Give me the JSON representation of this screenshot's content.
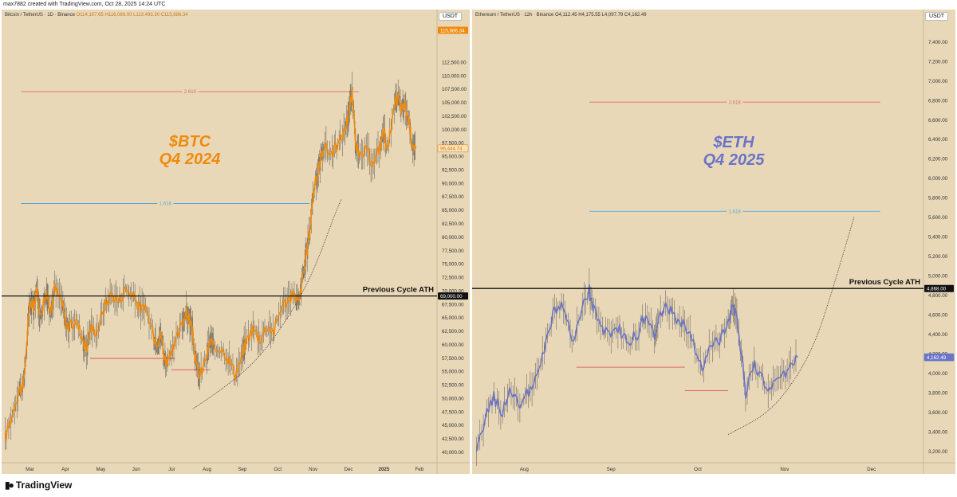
{
  "header": {
    "created_by": "max7882 created with TradingView.com, Oct 28, 2025 14:24 UTC"
  },
  "footer": {
    "brand": "TradingView"
  },
  "chart_data": [
    {
      "type": "line",
      "symbol_title": "Bitcoin / TetherUS · 1D · Binance",
      "ohlc": "O114,107.65 H116,086.00 L113,493.30 C115,886.34",
      "currency": "USDT",
      "annotation_title": "$BTC",
      "annotation_subtitle": "Q4 2024",
      "title_color": "#f08a0b",
      "series_color": "#f08a0b",
      "ylim": [
        38000,
        119000
      ],
      "y_ticks": [
        40000,
        42500,
        45000,
        47500,
        50000,
        52500,
        55000,
        57500,
        60000,
        62500,
        65000,
        67500,
        70000,
        72500,
        75000,
        77500,
        80000,
        82500,
        85000,
        87500,
        90000,
        92500,
        95000,
        97500,
        100000,
        102500,
        105000,
        107500,
        110000,
        112500
      ],
      "y_tick_labels": [
        "40,000.00",
        "42,500.00",
        "45,000.00",
        "47,500.00",
        "50,000.00",
        "52,500.00",
        "55,000.00",
        "57,500.00",
        "60,000.00",
        "62,500.00",
        "65,000.00",
        "67,500.00",
        "70,000.00",
        "72,500.00",
        "75,000.00",
        "77,500.00",
        "80,000.00",
        "82,500.00",
        "85,000.00",
        "87,500.00",
        "90,000.00",
        "92,500.00",
        "95,000.00",
        "97,500.00",
        "100,000.00",
        "102,500.00",
        "105,000.00",
        "107,500.00",
        "110,000.00",
        "112,500.00"
      ],
      "x_tick_labels": [
        "Mar",
        "Apr",
        "May",
        "Jun",
        "Jul",
        "Aug",
        "Sep",
        "Oct",
        "Nov",
        "Dec",
        "2025",
        "Feb"
      ],
      "x_tick_positions": [
        0.5,
        1.5,
        2.5,
        3.5,
        4.5,
        5.5,
        6.5,
        7.5,
        8.5,
        9.5,
        10.5,
        11.5
      ],
      "x_range_months": [
        -0.3,
        12.0
      ],
      "price_path": [
        [
          -0.2,
          42500
        ],
        [
          0.0,
          47000
        ],
        [
          0.2,
          52000
        ],
        [
          0.3,
          51500
        ],
        [
          0.4,
          59000
        ],
        [
          0.5,
          68000
        ],
        [
          0.6,
          67000
        ],
        [
          0.7,
          70000
        ],
        [
          0.8,
          65000
        ],
        [
          0.9,
          68500
        ],
        [
          1.0,
          69000
        ],
        [
          1.1,
          66000
        ],
        [
          1.2,
          70500
        ],
        [
          1.4,
          68000
        ],
        [
          1.5,
          64500
        ],
        [
          1.6,
          63000
        ],
        [
          1.8,
          64500
        ],
        [
          2.0,
          61000
        ],
        [
          2.1,
          59000
        ],
        [
          2.2,
          63000
        ],
        [
          2.4,
          62500
        ],
        [
          2.6,
          67000
        ],
        [
          2.8,
          69500
        ],
        [
          3.0,
          68000
        ],
        [
          3.2,
          70500
        ],
        [
          3.4,
          69000
        ],
        [
          3.6,
          67000
        ],
        [
          3.8,
          66000
        ],
        [
          4.0,
          61500
        ],
        [
          4.1,
          60500
        ],
        [
          4.2,
          62000
        ],
        [
          4.3,
          57500
        ],
        [
          4.4,
          56500
        ],
        [
          4.6,
          60000
        ],
        [
          4.8,
          64000
        ],
        [
          4.9,
          66000
        ],
        [
          5.0,
          65000
        ],
        [
          5.1,
          62000
        ],
        [
          5.2,
          56000
        ],
        [
          5.3,
          54000
        ],
        [
          5.5,
          58000
        ],
        [
          5.6,
          61000
        ],
        [
          5.7,
          59000
        ],
        [
          5.9,
          59500
        ],
        [
          6.1,
          57500
        ],
        [
          6.3,
          54500
        ],
        [
          6.5,
          58000
        ],
        [
          6.6,
          60500
        ],
        [
          6.8,
          63000
        ],
        [
          7.0,
          61000
        ],
        [
          7.2,
          63500
        ],
        [
          7.4,
          62500
        ],
        [
          7.6,
          67000
        ],
        [
          7.8,
          68500
        ],
        [
          8.0,
          69000
        ],
        [
          8.1,
          67500
        ],
        [
          8.2,
          72500
        ],
        [
          8.3,
          76000
        ],
        [
          8.4,
          81000
        ],
        [
          8.5,
          88000
        ],
        [
          8.6,
          91000
        ],
        [
          8.7,
          94000
        ],
        [
          8.8,
          97000
        ],
        [
          9.0,
          95500
        ],
        [
          9.2,
          97000
        ],
        [
          9.4,
          100000
        ],
        [
          9.5,
          103000
        ],
        [
          9.6,
          106500
        ],
        [
          9.7,
          98000
        ],
        [
          9.8,
          94500
        ],
        [
          10.0,
          96000
        ],
        [
          10.2,
          93500
        ],
        [
          10.4,
          97000
        ],
        [
          10.5,
          100000
        ],
        [
          10.6,
          96000
        ],
        [
          10.8,
          104000
        ],
        [
          10.9,
          106000
        ],
        [
          11.0,
          103500
        ],
        [
          11.1,
          104500
        ],
        [
          11.2,
          101500
        ],
        [
          11.3,
          97500
        ],
        [
          11.4,
          96400
        ]
      ],
      "last_price": 96444.74,
      "last_price_label": "96,444.74",
      "top_price": 115886.34,
      "top_price_label": "115,886.34",
      "fib_2618": {
        "label": "2.618",
        "value": 107000,
        "x_start": 0.25,
        "x_end": 9.8,
        "color": "#e06a6a"
      },
      "fib_1618": {
        "label": "1.618",
        "value": 86200,
        "x_start": 0.25,
        "x_end": 8.4,
        "color": "#5aaad8"
      },
      "ath": {
        "label": "Previous Cycle ATH",
        "value": 69000,
        "price_label": "69,000.00"
      },
      "support_lines": [
        {
          "value": 57400,
          "x_start": 2.2,
          "x_end": 4.6
        },
        {
          "value": 55300,
          "x_start": 4.5,
          "x_end": 5.6
        }
      ],
      "curve": {
        "points": [
          [
            5.1,
            48000
          ],
          [
            6.0,
            52000
          ],
          [
            7.0,
            57500
          ],
          [
            8.0,
            67000
          ],
          [
            8.6,
            75000
          ],
          [
            9.1,
            84000
          ],
          [
            9.3,
            87000
          ]
        ]
      }
    },
    {
      "type": "line",
      "symbol_title": "Ethereum / TetherUS · 12h · Binance",
      "ohlc": "O4,112.45 H4,175.55 L4,097.79 C4,162.49",
      "currency": "USDT",
      "annotation_title": "$ETH",
      "annotation_subtitle": "Q4 2025",
      "title_color": "#6a74c9",
      "series_color": "#6a74c9",
      "ylim": [
        3080,
        7550
      ],
      "y_ticks": [
        3200,
        3400,
        3600,
        3800,
        4000,
        4200,
        4400,
        4600,
        4800,
        5000,
        5200,
        5400,
        5600,
        5800,
        6000,
        6200,
        6400,
        6600,
        6800,
        7000,
        7200,
        7400
      ],
      "y_tick_labels": [
        "3,200.00",
        "3,400.00",
        "3,600.00",
        "3,800.00",
        "4,000.00",
        "4,200.00",
        "4,400.00",
        "4,600.00",
        "4,800.00",
        "5,000.00",
        "5,200.00",
        "5,400.00",
        "5,600.00",
        "5,800.00",
        "6,000.00",
        "6,200.00",
        "6,400.00",
        "6,600.00",
        "6,800.00",
        "7,000.00",
        "7,200.00",
        "7,400.00"
      ],
      "x_tick_labels": [
        "Aug",
        "Sep",
        "Oct",
        "Nov",
        "Dec"
      ],
      "x_tick_positions": [
        0,
        1,
        2,
        3,
        4
      ],
      "x_range_months": [
        -0.6,
        4.6
      ],
      "price_path": [
        [
          -0.55,
          3150
        ],
        [
          -0.45,
          3550
        ],
        [
          -0.35,
          3750
        ],
        [
          -0.25,
          3600
        ],
        [
          -0.15,
          3850
        ],
        [
          -0.05,
          3650
        ],
        [
          0.05,
          3800
        ],
        [
          0.15,
          3950
        ],
        [
          0.25,
          4300
        ],
        [
          0.35,
          4650
        ],
        [
          0.45,
          4700
        ],
        [
          0.55,
          4300
        ],
        [
          0.65,
          4600
        ],
        [
          0.75,
          4850
        ],
        [
          0.8,
          4650
        ],
        [
          0.9,
          4450
        ],
        [
          1.0,
          4350
        ],
        [
          1.1,
          4450
        ],
        [
          1.2,
          4300
        ],
        [
          1.3,
          4400
        ],
        [
          1.4,
          4600
        ],
        [
          1.5,
          4350
        ],
        [
          1.55,
          4550
        ],
        [
          1.65,
          4700
        ],
        [
          1.75,
          4550
        ],
        [
          1.85,
          4500
        ],
        [
          1.95,
          4300
        ],
        [
          2.05,
          4050
        ],
        [
          2.15,
          4250
        ],
        [
          2.25,
          4350
        ],
        [
          2.35,
          4550
        ],
        [
          2.4,
          4700
        ],
        [
          2.45,
          4600
        ],
        [
          2.5,
          4200
        ],
        [
          2.55,
          3800
        ],
        [
          2.65,
          4100
        ],
        [
          2.75,
          3900
        ],
        [
          2.85,
          3850
        ],
        [
          2.95,
          3950
        ],
        [
          3.05,
          4050
        ],
        [
          3.15,
          4162
        ]
      ],
      "last_price": 4162.49,
      "last_price_label": "4,162.49",
      "fib_2618": {
        "label": "2.618",
        "value": 6780,
        "x_start": 0.75,
        "x_end": 4.1,
        "color": "#e06a6a"
      },
      "fib_1618": {
        "label": "1.618",
        "value": 5660,
        "x_start": 0.75,
        "x_end": 4.1,
        "color": "#5aaad8"
      },
      "ath": {
        "label": "Previous Cycle ATH",
        "value": 4868,
        "price_label": "4,868.00"
      },
      "support_lines": [
        {
          "value": 4060,
          "x_start": 0.6,
          "x_end": 1.85
        },
        {
          "value": 3820,
          "x_start": 1.85,
          "x_end": 2.35
        }
      ],
      "curve": {
        "points": [
          [
            2.35,
            3370
          ],
          [
            2.8,
            3580
          ],
          [
            3.1,
            3900
          ],
          [
            3.35,
            4300
          ],
          [
            3.55,
            4850
          ],
          [
            3.7,
            5300
          ],
          [
            3.8,
            5600
          ]
        ]
      }
    }
  ]
}
